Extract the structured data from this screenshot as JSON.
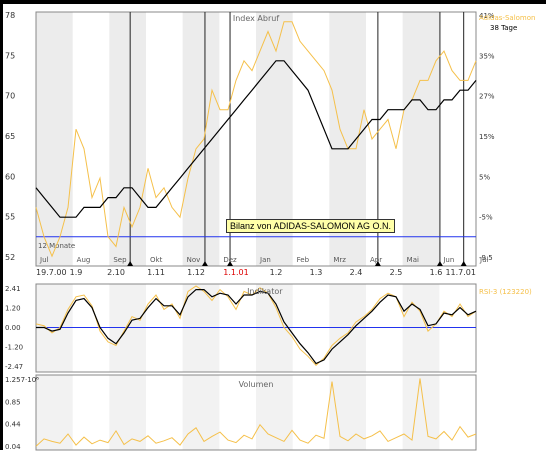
{
  "top_panel": {
    "title": "Index Abruf",
    "legend_series": "Adidas-Salomon",
    "legend_avg": "38 Tage",
    "left_ticks": [
      "78",
      "75",
      "70",
      "65",
      "60",
      "55",
      "52"
    ],
    "right_ticks": [
      "41%",
      "35%",
      "27%",
      "15%",
      "5%",
      "-5%",
      "-9.5"
    ],
    "note": "12 Monate",
    "months": [
      "Jul",
      "Aug",
      "Sep",
      "Okt",
      "Nov",
      "Dez",
      "Jan",
      "Feb",
      "Mrz",
      "Apr",
      "Mai",
      "Jun",
      "Jul"
    ],
    "dates": [
      {
        "label": "19.7.00",
        "red": false
      },
      {
        "label": "1.9",
        "red": false
      },
      {
        "label": "2.10",
        "red": false
      },
      {
        "label": "1.11",
        "red": false
      },
      {
        "label": "1.12",
        "red": false
      },
      {
        "label": "1.1.01",
        "red": true
      },
      {
        "label": "1.2",
        "red": false
      },
      {
        "label": "1.3",
        "red": false
      },
      {
        "label": "2.4",
        "red": false
      },
      {
        "label": "2.5",
        "red": false
      },
      {
        "label": "1.6",
        "red": false
      },
      {
        "label": "11.7.01",
        "red": false
      }
    ]
  },
  "tooltip": "Bilanz von ADIDAS-SALOMON AG O.N.",
  "mid_panel": {
    "title": "Indikator",
    "legend": "RSI-3 (123220)",
    "ticks": [
      "2.41",
      "1.20",
      "0.00",
      "-1.20",
      "-2.47"
    ]
  },
  "bottom_panel": {
    "title": "Volumen",
    "ticks": [
      "1.257·10⁶",
      "0.85",
      "0.44",
      "0.04"
    ]
  },
  "colors": {
    "price": "#f5c04a",
    "average": "#000000",
    "baseline": "#2233ee",
    "shade": "#ececec",
    "red_date": "#dd0000"
  },
  "chart_data": [
    {
      "type": "line",
      "title": "Index Abruf",
      "ylim": [
        52,
        78
      ],
      "series": [
        {
          "name": "Adidas-Salomon",
          "values": [
            58,
            55,
            53,
            55,
            58,
            66,
            64,
            59,
            61,
            55,
            54,
            58,
            56,
            58,
            62,
            59,
            60,
            58,
            57,
            61,
            64,
            65,
            70,
            68,
            68,
            71,
            73,
            72,
            74,
            76,
            74,
            77,
            77,
            75,
            74,
            73,
            72,
            70,
            66,
            64,
            64,
            68,
            65,
            66,
            67,
            64,
            68,
            69,
            71,
            71,
            73,
            74,
            72,
            71,
            71,
            73
          ]
        },
        {
          "name": "38 Tage",
          "values": [
            60,
            59,
            58,
            57,
            57,
            57,
            58,
            58,
            58,
            59,
            59,
            60,
            60,
            59,
            58,
            58,
            59,
            60,
            61,
            62,
            63,
            64,
            65,
            66,
            67,
            68,
            69,
            70,
            71,
            72,
            73,
            73,
            72,
            71,
            70,
            68,
            66,
            64,
            64,
            64,
            65,
            66,
            67,
            67,
            68,
            68,
            68,
            69,
            69,
            68,
            68,
            69,
            69,
            70,
            70,
            71
          ]
        }
      ]
    },
    {
      "type": "line",
      "title": "Indikator",
      "ylim": [
        -2.47,
        2.41
      ],
      "series": [
        {
          "name": "RSI-3 (123220)",
          "values": [
            0.2,
            0.1,
            -0.3,
            0.0,
            1.0,
            1.7,
            1.8,
            1.2,
            -0.2,
            -0.8,
            -1.0,
            -0.2,
            0.6,
            0.4,
            1.3,
            1.8,
            1.0,
            1.3,
            0.5,
            2.0,
            2.3,
            2.0,
            1.5,
            2.1,
            1.7,
            1.0,
            2.0,
            1.8,
            2.2,
            1.9,
            1.1,
            0.0,
            -0.5,
            -1.2,
            -1.6,
            -2.1,
            -1.7,
            -1.0,
            -0.6,
            -0.3,
            0.3,
            0.6,
            1.0,
            1.6,
            1.9,
            1.7,
            0.6,
            1.4,
            0.9,
            -0.2,
            0.2,
            0.9,
            0.6,
            1.3,
            0.6,
            0.9
          ]
        },
        {
          "name": "",
          "values": [
            0.0,
            0.0,
            -0.2,
            -0.1,
            0.8,
            1.5,
            1.6,
            1.1,
            0.0,
            -0.6,
            -0.9,
            -0.3,
            0.4,
            0.5,
            1.1,
            1.6,
            1.2,
            1.2,
            0.7,
            1.7,
            2.1,
            2.1,
            1.7,
            1.9,
            1.8,
            1.3,
            1.8,
            1.8,
            2.0,
            1.9,
            1.3,
            0.3,
            -0.3,
            -0.9,
            -1.4,
            -2.0,
            -1.8,
            -1.2,
            -0.8,
            -0.4,
            0.1,
            0.5,
            0.9,
            1.4,
            1.8,
            1.7,
            0.9,
            1.3,
            1.0,
            0.1,
            0.2,
            0.8,
            0.7,
            1.1,
            0.7,
            0.9
          ]
        }
      ]
    },
    {
      "type": "bar",
      "title": "Volumen",
      "ylim": [
        0.04,
        1.257
      ],
      "series": [
        {
          "name": "",
          "values": [
            0.1,
            0.22,
            0.18,
            0.15,
            0.3,
            0.12,
            0.25,
            0.14,
            0.2,
            0.16,
            0.35,
            0.13,
            0.22,
            0.18,
            0.27,
            0.15,
            0.19,
            0.24,
            0.12,
            0.3,
            0.4,
            0.18,
            0.26,
            0.33,
            0.2,
            0.16,
            0.28,
            0.22,
            0.45,
            0.3,
            0.24,
            0.18,
            0.36,
            0.2,
            0.15,
            0.28,
            0.23,
            1.15,
            0.26,
            0.19,
            0.3,
            0.22,
            0.27,
            0.35,
            0.18,
            0.24,
            0.3,
            0.2,
            1.2,
            0.26,
            0.22,
            0.34,
            0.2,
            0.42,
            0.25,
            0.3
          ]
        }
      ]
    }
  ]
}
